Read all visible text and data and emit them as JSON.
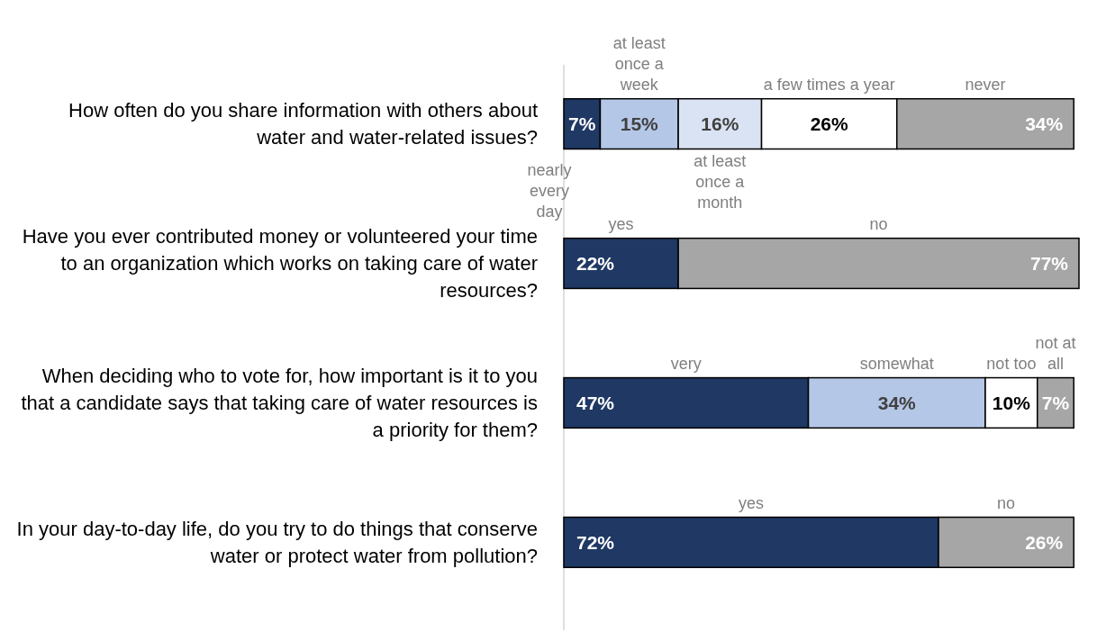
{
  "chart_data": {
    "type": "bar",
    "orientation": "horizontal",
    "stacked": true,
    "tick_labels": "y",
    "categories": [
      "How often do you share information with others about water and water-related issues?",
      "Have you ever contributed money or volunteered your time to an organization which works on taking care of water resources?",
      "When deciding who to vote for, how important is it to you that a candidate says that taking care of water resources is a priority for them?",
      "In your day-to-day life, do you try to do things that conserve water or protect water from pollution?"
    ],
    "series": [
      {
        "values": [
          7,
          22,
          47,
          72
        ],
        "colors": [
          "#1f3864",
          "#1f3864",
          "#1f3864",
          "#1f3864"
        ],
        "value_labels": [
          "7%",
          "22%",
          "47%",
          "72%"
        ]
      },
      {
        "values": [
          15,
          77,
          34,
          26
        ],
        "colors": [
          "#b4c7e7",
          "#a6a6a6",
          "#b4c7e7",
          "#a6a6a6"
        ],
        "value_labels": [
          "15%",
          "77%",
          "34%",
          "26%"
        ]
      },
      {
        "values": [
          16,
          null,
          10,
          null
        ],
        "colors": [
          "#dae3f3",
          null,
          "#ffffff",
          null
        ],
        "value_labels": [
          "16%",
          null,
          "10%",
          null
        ]
      },
      {
        "values": [
          26,
          null,
          7,
          null
        ],
        "colors": [
          "#ffffff",
          null,
          "#a6a6a6",
          null
        ],
        "value_labels": [
          "26%",
          null,
          "7%",
          null
        ]
      },
      {
        "values": [
          34,
          null,
          null,
          null
        ],
        "colors": [
          "#a6a6a6",
          null,
          null,
          null
        ],
        "value_labels": [
          "34%",
          null,
          null,
          null
        ]
      }
    ],
    "annotations": [
      "nearly every day",
      "at least once a week",
      "at least once a month",
      "a few times a year",
      "never",
      "yes",
      "no",
      "very",
      "somewhat",
      "not too",
      "not at all",
      "yes",
      "no"
    ]
  }
}
